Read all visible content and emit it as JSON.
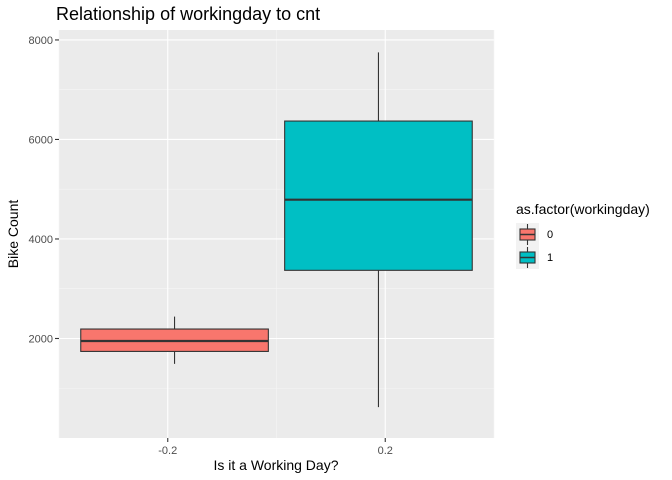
{
  "chart_data": {
    "type": "boxplot",
    "title": "Relationship of workingday to cnt",
    "xlabel": "Is it a Working Day?",
    "ylabel": "Bike Count",
    "xlim": [
      -0.4,
      0.4
    ],
    "ylim": [
      0,
      8200
    ],
    "x_ticks": [
      -0.2,
      0.2
    ],
    "x_tick_labels": [
      "-0.2",
      "0.2"
    ],
    "y_ticks": [
      2000,
      4000,
      6000,
      8000
    ],
    "y_tick_labels": [
      "2000",
      "4000",
      "6000",
      "8000"
    ],
    "grid": true,
    "legend": {
      "title": "as.factor(workingday)",
      "position": "right",
      "entries": [
        {
          "label": "0",
          "color": "#F8766D"
        },
        {
          "label": "1",
          "color": "#00BFC4"
        }
      ]
    },
    "boxes": [
      {
        "group": "0",
        "x_center": -0.1875,
        "x_left": -0.36,
        "x_right": -0.015,
        "min": 1490,
        "q1": 1740,
        "median": 1950,
        "q3": 2190,
        "max": 2440,
        "color": "#F8766D"
      },
      {
        "group": "1",
        "x_center": 0.1875,
        "x_left": 0.015,
        "x_right": 0.36,
        "min": 620,
        "q1": 3370,
        "median": 4790,
        "q3": 6370,
        "max": 7750,
        "color": "#00BFC4"
      }
    ]
  }
}
